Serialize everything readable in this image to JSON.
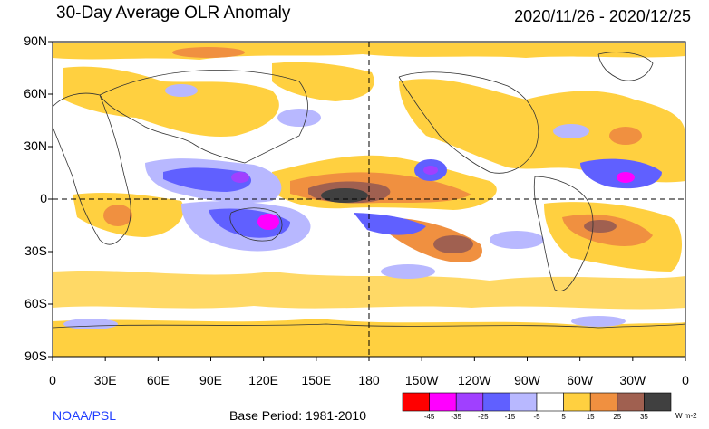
{
  "title": "30-Day Average OLR Anomaly",
  "date_range": "2020/11/26 - 2020/12/25",
  "source": "NOAA/PSL",
  "base_period": "Base Period: 1981-2010",
  "colorbar": {
    "unit": "W m-2",
    "colors": [
      "#ff0000",
      "#ff00ff",
      "#a040ff",
      "#6060ff",
      "#b8b8ff",
      "#ffffff",
      "#ffd040",
      "#f09040",
      "#a06050",
      "#404040"
    ],
    "labels": [
      "-45",
      "-35",
      "-25",
      "-15",
      "-5",
      "5",
      "15",
      "25",
      "35"
    ]
  },
  "lat_labels": [
    "90N",
    "60N",
    "30N",
    "0",
    "30S",
    "60S",
    "90S"
  ],
  "lon_labels": [
    "0",
    "30E",
    "60E",
    "90E",
    "120E",
    "150E",
    "180",
    "150W",
    "120W",
    "90W",
    "60W",
    "30W",
    "0"
  ],
  "colors": {
    "positive_weak": "#ffd040",
    "positive_mod": "#f09040",
    "positive_strong": "#a06050",
    "positive_max": "#404040",
    "negative_weak": "#b8b8ff",
    "negative_mod": "#6060ff",
    "negative_strong": "#a040ff",
    "negative_max": "#ff00ff"
  }
}
